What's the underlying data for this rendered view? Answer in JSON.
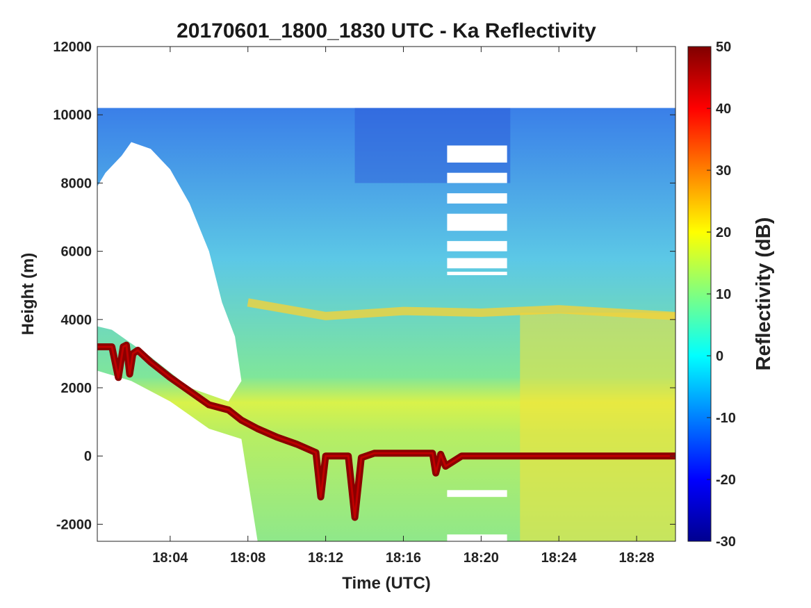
{
  "chart_data": {
    "type": "heatmap",
    "title": "20170601_1800_1830 UTC - Ka Reflectivity",
    "xlabel": "Time (UTC)",
    "ylabel": "Height (m)",
    "colorbar_label": "Reflectivity (dB)",
    "colormap": "jet",
    "xlim": [
      "18:00:15",
      "18:30:00"
    ],
    "ylim": [
      -2500,
      12000
    ],
    "clim": [
      -30,
      50
    ],
    "x_ticks": [
      "18:04",
      "18:08",
      "18:12",
      "18:16",
      "18:20",
      "18:24",
      "18:28"
    ],
    "y_ticks": [
      -2000,
      0,
      2000,
      4000,
      6000,
      8000,
      10000,
      12000
    ],
    "colorbar_ticks": [
      -30,
      -20,
      -10,
      0,
      10,
      20,
      30,
      40,
      50
    ],
    "data_top_m": 10200,
    "surface_return": {
      "description": "strong surface echo (~50 dB) seen as dark red band",
      "points": [
        [
          "18:00:15",
          3200
        ],
        [
          "18:01:00",
          3200
        ],
        [
          "18:01:20",
          2300
        ],
        [
          "18:01:35",
          3200
        ],
        [
          "18:01:45",
          3250
        ],
        [
          "18:01:55",
          2400
        ],
        [
          "18:02:05",
          3000
        ],
        [
          "18:02:20",
          3100
        ],
        [
          "18:03:00",
          2750
        ],
        [
          "18:04:00",
          2300
        ],
        [
          "18:05:00",
          1900
        ],
        [
          "18:06:00",
          1500
        ],
        [
          "18:07:00",
          1350
        ],
        [
          "18:07:40",
          1050
        ],
        [
          "18:08:30",
          800
        ],
        [
          "18:09:30",
          550
        ],
        [
          "18:10:30",
          350
        ],
        [
          "18:11:30",
          100
        ],
        [
          "18:11:45",
          -1200
        ],
        [
          "18:12:00",
          0
        ],
        [
          "18:13:10",
          0
        ],
        [
          "18:13:30",
          -1800
        ],
        [
          "18:13:50",
          -50
        ],
        [
          "18:14:30",
          80
        ],
        [
          "18:17:30",
          80
        ],
        [
          "18:17:40",
          -500
        ],
        [
          "18:17:55",
          50
        ],
        [
          "18:18:10",
          -300
        ],
        [
          "18:19:00",
          0
        ],
        [
          "18:30:00",
          0
        ]
      ]
    },
    "melting_layer": {
      "description": "bright band ~20 dB near 4200 m",
      "points": [
        [
          "18:08:00",
          4500
        ],
        [
          "18:12:00",
          4100
        ],
        [
          "18:16:00",
          4250
        ],
        [
          "18:20:00",
          4200
        ],
        [
          "18:24:00",
          4300
        ],
        [
          "18:30:00",
          4100
        ]
      ]
    },
    "regions": [
      {
        "name": "upper cloud",
        "altitude_m": [
          5000,
          10200
        ],
        "reflectivity_db": [
          -10,
          10
        ]
      },
      {
        "name": "precipitation",
        "altitude_m": [
          -2500,
          4200
        ],
        "reflectivity_db": [
          10,
          25
        ]
      },
      {
        "name": "no-echo gap",
        "time": [
          "18:00:15",
          "18:06:30"
        ],
        "altitude_m": [
          2500,
          9500
        ]
      }
    ],
    "grid": false,
    "legend": "colorbar-right"
  }
}
